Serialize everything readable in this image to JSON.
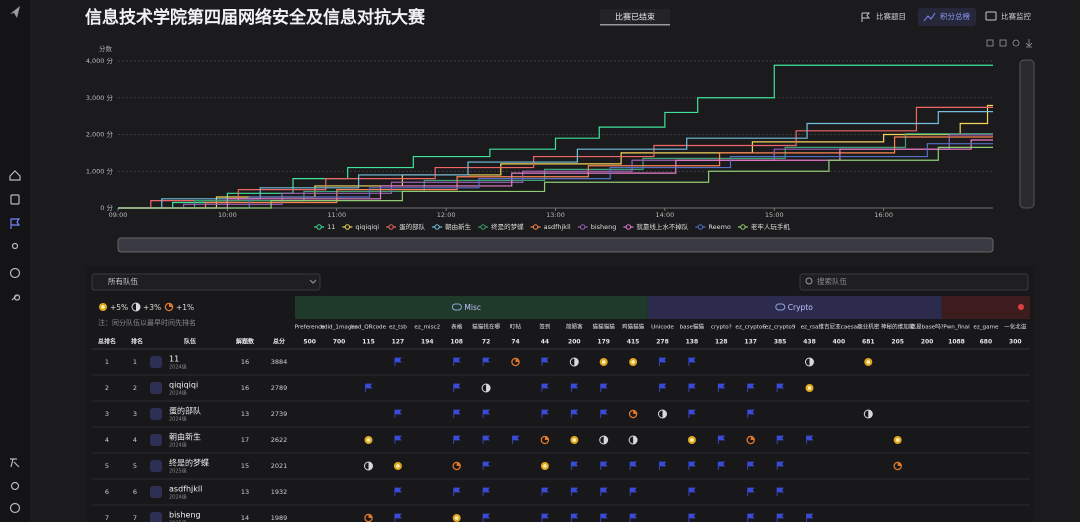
{
  "header": {
    "title": "信息技术学院第四届网络安全及信息对抗大赛",
    "status": "比赛已结束",
    "nav": [
      "比赛题目",
      "积分总榜",
      "比赛监控"
    ]
  },
  "chart_data": {
    "type": "line",
    "y_label": "分数",
    "xlim": [
      9,
      17
    ],
    "xticks": [
      {
        "value": 9,
        "label": "09:00"
      },
      {
        "value": 10,
        "label": "10:00"
      },
      {
        "value": 11,
        "label": "11:00"
      },
      {
        "value": 12,
        "label": "12:00"
      },
      {
        "value": 13,
        "label": "13:00"
      },
      {
        "value": 14,
        "label": "14:00"
      },
      {
        "value": 15,
        "label": "15:00"
      },
      {
        "value": 16,
        "label": "16:00"
      }
    ],
    "ylim": [
      0,
      4000
    ],
    "yticks": [
      {
        "value": 0,
        "label": "0 分"
      },
      {
        "value": 1000,
        "label": "1,000 分"
      },
      {
        "value": 2000,
        "label": "2,000 分"
      },
      {
        "value": 3000,
        "label": "3,000 分"
      },
      {
        "value": 4000,
        "label": "4,000 分"
      }
    ],
    "grid": true,
    "legend": "bottom",
    "series": [
      {
        "name": "11",
        "color": "#3fe39a",
        "x": [
          9,
          9.5,
          9.5,
          10,
          10,
          10.6,
          10.6,
          11.1,
          11.1,
          11.7,
          11.7,
          12.4,
          12.4,
          13,
          13,
          13.4,
          13.4,
          14,
          14,
          14.3,
          14.3,
          15,
          15,
          17
        ],
        "values": [
          0,
          0,
          150,
          150,
          400,
          400,
          800,
          800,
          1100,
          1100,
          1400,
          1400,
          1600,
          1600,
          1900,
          1900,
          2200,
          2200,
          2600,
          2600,
          3000,
          3000,
          3884,
          3884
        ]
      },
      {
        "name": "qiqiqiqi",
        "color": "#f6d55c",
        "x": [
          9,
          9.9,
          9.9,
          10.8,
          10.8,
          11.6,
          11.6,
          12.5,
          12.5,
          13.6,
          13.6,
          14.8,
          14.8,
          16,
          16,
          16.7,
          16.7,
          16.95,
          16.95,
          17
        ],
        "values": [
          0,
          0,
          300,
          300,
          600,
          600,
          900,
          900,
          1200,
          1200,
          1500,
          1500,
          1800,
          1800,
          2000,
          2000,
          2300,
          2300,
          2789,
          2789
        ]
      },
      {
        "name": "蛋的部队",
        "color": "#ee6666",
        "x": [
          9,
          9.3,
          9.3,
          10.1,
          10.1,
          10.9,
          10.9,
          11.9,
          11.9,
          12.8,
          12.8,
          13.9,
          13.9,
          15.2,
          15.2,
          16.3,
          16.3,
          17
        ],
        "values": [
          0,
          0,
          200,
          200,
          500,
          500,
          800,
          800,
          1100,
          1100,
          1400,
          1400,
          1700,
          1700,
          2100,
          2100,
          2739,
          2739
        ]
      },
      {
        "name": "朝由新生",
        "color": "#73c0de",
        "x": [
          9,
          9.4,
          9.4,
          10.3,
          10.3,
          11.2,
          11.2,
          12.2,
          12.2,
          13.2,
          13.2,
          14.2,
          14.2,
          15.3,
          15.3,
          16.5,
          16.5,
          17
        ],
        "values": [
          0,
          0,
          250,
          250,
          550,
          550,
          900,
          900,
          1250,
          1250,
          1600,
          1600,
          1900,
          1900,
          2300,
          2300,
          2622,
          2622
        ]
      },
      {
        "name": "终是的梦蝶",
        "color": "#3ba272",
        "x": [
          9,
          9.7,
          9.7,
          10.7,
          10.7,
          11.8,
          11.8,
          12.9,
          12.9,
          13.8,
          13.8,
          15.1,
          15.1,
          16.2,
          16.2,
          17
        ],
        "values": [
          0,
          0,
          200,
          200,
          450,
          450,
          750,
          750,
          1050,
          1050,
          1350,
          1350,
          1650,
          1650,
          2021,
          2021
        ]
      },
      {
        "name": "asdfhjkll",
        "color": "#fc8452",
        "x": [
          9,
          9.8,
          9.8,
          11,
          11,
          12.1,
          12.1,
          13.3,
          13.3,
          14.5,
          14.5,
          16.1,
          16.1,
          17
        ],
        "values": [
          0,
          0,
          150,
          150,
          500,
          500,
          850,
          850,
          1150,
          1150,
          1500,
          1500,
          1932,
          1932
        ]
      },
      {
        "name": "bisheng",
        "color": "#9a60b4",
        "x": [
          9,
          9.6,
          9.6,
          10.5,
          10.5,
          11.5,
          11.5,
          12.7,
          12.7,
          13.7,
          13.7,
          15,
          15,
          16.6,
          16.6,
          17
        ],
        "values": [
          0,
          0,
          100,
          100,
          400,
          400,
          700,
          700,
          1000,
          1000,
          1300,
          1300,
          1600,
          1600,
          1989,
          1989
        ]
      },
      {
        "name": "就靠线上水不掉队",
        "color": "#ea7ccc",
        "x": [
          9,
          10,
          10,
          11.4,
          11.4,
          12.6,
          12.6,
          14.1,
          14.1,
          15.6,
          15.6,
          16.8,
          16.8,
          17
        ],
        "values": [
          0,
          0,
          250,
          250,
          600,
          600,
          950,
          950,
          1300,
          1300,
          1600,
          1600,
          1850,
          1850
        ]
      },
      {
        "name": "Reemo",
        "color": "#5470c6",
        "x": [
          9,
          10.2,
          10.2,
          11.3,
          11.3,
          12.3,
          12.3,
          13.5,
          13.5,
          14.6,
          14.6,
          16.4,
          16.4,
          17
        ],
        "values": [
          0,
          0,
          300,
          300,
          550,
          550,
          800,
          800,
          1100,
          1100,
          1400,
          1400,
          1750,
          1750
        ]
      },
      {
        "name": "老牢人玩手机",
        "color": "#91cc75",
        "x": [
          9,
          10.4,
          10.4,
          11.6,
          11.6,
          12.9,
          12.9,
          14.4,
          14.4,
          15.5,
          15.5,
          16.5,
          16.5,
          17
        ],
        "values": [
          0,
          0,
          200,
          200,
          450,
          450,
          700,
          700,
          1000,
          1000,
          1300,
          1300,
          1650,
          1650
        ]
      }
    ]
  },
  "scoreboard": {
    "filter": "所有队伍",
    "search_placeholder": "搜索队伍",
    "bonus": [
      "+5%",
      "+3%",
      "+1%"
    ],
    "note": "注：同分队伍以最早时间先排名",
    "columns": [
      "总排名",
      "排名",
      "队伍",
      "解题数",
      "总分"
    ],
    "categories": [
      {
        "name": "Misc",
        "color": "#1f3a2b",
        "challenges": [
          {
            "name": "Preference",
            "score": 500
          },
          {
            "name": "bdid_1mages",
            "score": 700
          },
          {
            "name": "bad_QRcode",
            "score": 115
          },
          {
            "name": "ez_tsb",
            "score": 127
          },
          {
            "name": "ez_misc2",
            "score": 194
          },
          {
            "name": "表格",
            "score": 108
          },
          {
            "name": "猫猫找在哪",
            "score": 72
          },
          {
            "name": "盯帖",
            "score": 74
          },
          {
            "name": "签到",
            "score": 44
          },
          {
            "name": "简陋客",
            "score": 200
          },
          {
            "name": "猫猫猫猫",
            "score": 179
          },
          {
            "name": "鸡猫猫猫",
            "score": 415
          }
        ]
      },
      {
        "name": "Crypto",
        "color": "#2c2a4d",
        "challenges": [
          {
            "name": "Unicode",
            "score": 278
          },
          {
            "name": "base猫猫",
            "score": 138
          },
          {
            "name": "crypto?",
            "score": 128
          },
          {
            "name": "ez_crypto6",
            "score": 137
          },
          {
            "name": "ez_crypto9",
            "score": 385
          },
          {
            "name": "ez_rsa",
            "score": 438
          },
          {
            "name": "维吉尼亚caesar",
            "score": 400
          },
          {
            "name": "商业机密",
            "score": 681
          },
          {
            "name": "神秘的维加能",
            "score": 205
          },
          {
            "name": "这是base吗?",
            "score": 200
          }
        ]
      },
      {
        "name": null,
        "color": "#3d1c1e",
        "challenges": [
          {
            "name": "Pwn_final",
            "score": 1088
          },
          {
            "name": "ez_game",
            "score": 680
          },
          {
            "name": "一化北溢",
            "score": 300
          }
        ]
      }
    ],
    "rows": [
      {
        "rank": 1,
        "place": 1,
        "team": "11",
        "grade": "2024级",
        "solved": 16,
        "score": 3884,
        "cells": [
          null,
          null,
          null,
          "flag",
          null,
          "flag",
          "flag",
          "third",
          "flag",
          "second",
          "first",
          "first",
          "flag",
          "flag",
          null,
          null,
          null,
          "second",
          null,
          "first",
          null,
          null,
          null,
          null,
          null
        ]
      },
      {
        "rank": 2,
        "place": 2,
        "team": "qiqiqiqi",
        "grade": "2024级",
        "solved": 16,
        "score": 2789,
        "cells": [
          null,
          null,
          "flag",
          null,
          null,
          "flag",
          "second",
          null,
          "flag",
          "flag",
          "flag",
          null,
          "flag",
          "flag",
          "flag",
          "flag",
          "flag",
          "first",
          null,
          null,
          null,
          null,
          null,
          null,
          null
        ]
      },
      {
        "rank": 3,
        "place": 3,
        "team": "蛋的部队",
        "grade": "2024级",
        "solved": 13,
        "score": 2739,
        "cells": [
          null,
          null,
          null,
          "flag",
          null,
          "flag",
          "flag",
          null,
          "flag",
          "flag",
          "flag",
          "third",
          "second",
          "flag",
          null,
          "flag",
          null,
          null,
          null,
          "second",
          null,
          null,
          null,
          null,
          null
        ]
      },
      {
        "rank": 4,
        "place": 4,
        "team": "朝由新生",
        "grade": "2024级",
        "solved": 17,
        "score": 2622,
        "cells": [
          null,
          null,
          "first",
          "flag",
          null,
          "flag",
          "flag",
          "flag",
          "third",
          "first",
          "second",
          "second",
          null,
          "first",
          "flag",
          "third",
          "flag",
          "flag",
          null,
          null,
          "first",
          null,
          null,
          null,
          null
        ]
      },
      {
        "rank": 5,
        "place": 5,
        "team": "终是的梦蝶",
        "grade": "2025级",
        "solved": 15,
        "score": 2021,
        "cells": [
          null,
          null,
          "second",
          "first",
          null,
          "third",
          "flag",
          null,
          "first",
          "flag",
          "flag",
          "flag",
          "flag",
          "flag",
          "flag",
          "flag",
          "flag",
          null,
          null,
          null,
          "third",
          null,
          null,
          null,
          null
        ]
      },
      {
        "rank": 6,
        "place": 6,
        "team": "asdfhjkll",
        "grade": "2024级",
        "solved": 13,
        "score": 1932,
        "cells": [
          null,
          null,
          null,
          "flag",
          null,
          "flag",
          "flag",
          null,
          "flag",
          "flag",
          "flag",
          "flag",
          null,
          "flag",
          null,
          "flag",
          "flag",
          null,
          null,
          null,
          null,
          null,
          null,
          null,
          null
        ]
      },
      {
        "rank": 7,
        "place": 7,
        "team": "bisheng",
        "grade": "2025级",
        "solved": 14,
        "score": 1989,
        "cells": [
          null,
          null,
          "third",
          "flag",
          null,
          "first",
          "flag",
          null,
          "flag",
          "flag",
          "flag",
          "flag",
          null,
          "flag",
          null,
          "flag",
          "flag",
          "flag",
          null,
          null,
          null,
          null,
          null,
          null,
          null
        ]
      }
    ]
  }
}
